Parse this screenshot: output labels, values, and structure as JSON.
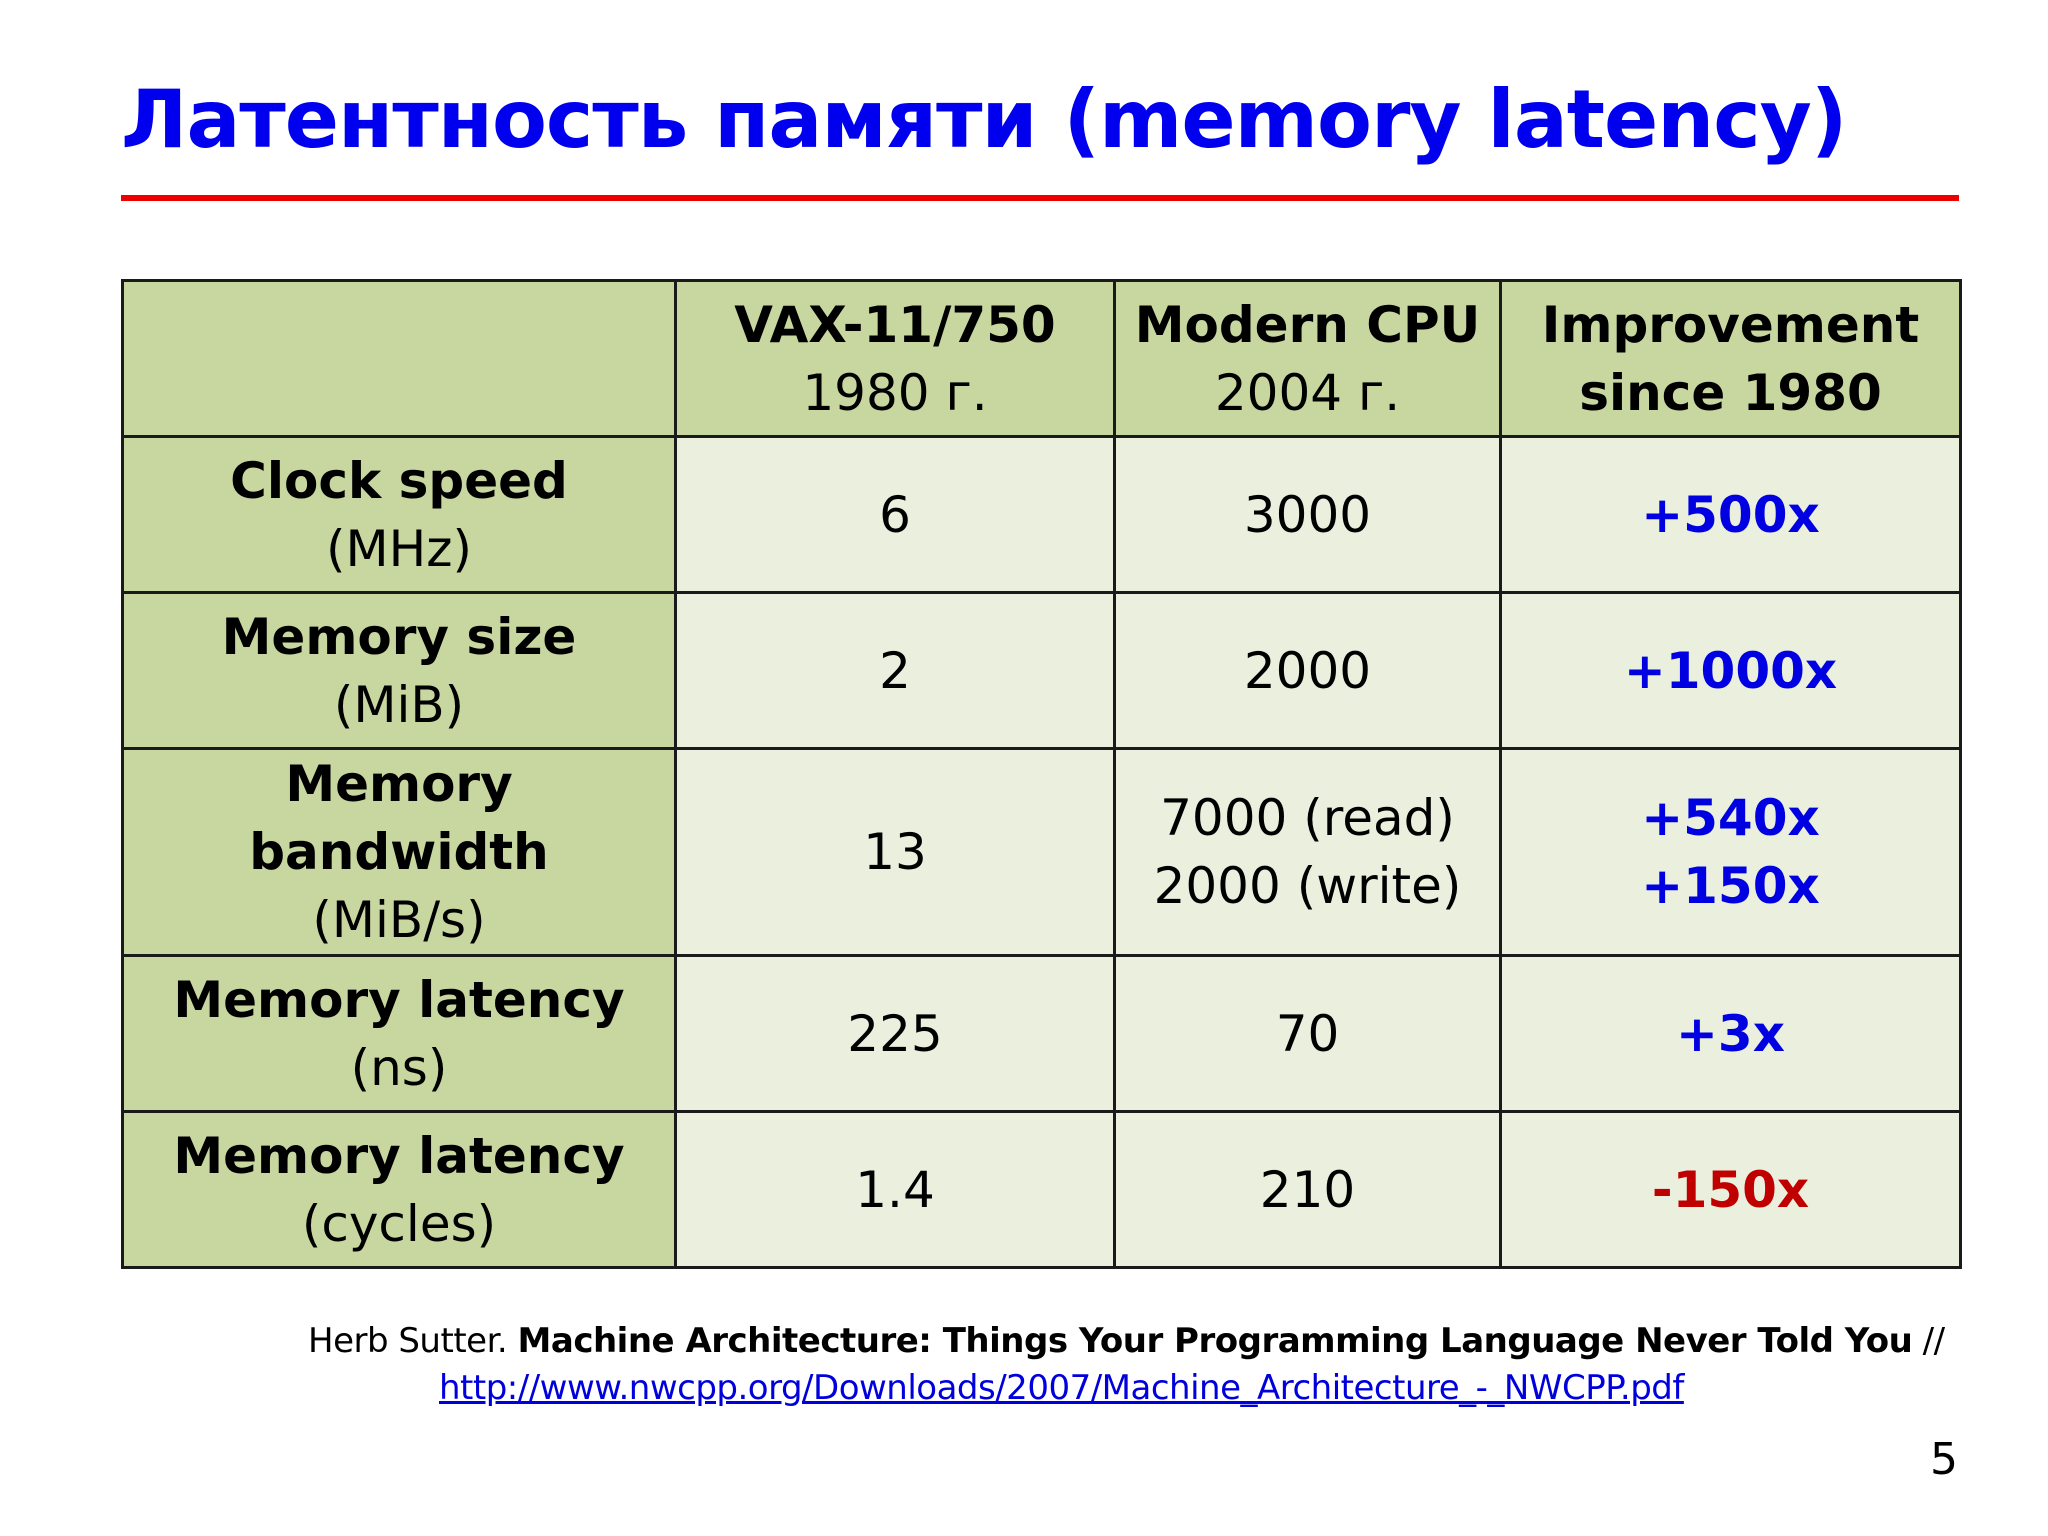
{
  "title": "Латентность памяти (memory latency)",
  "table": {
    "header": {
      "col1": {
        "line1": "VAX-11/750",
        "line2": "1980 г."
      },
      "col2": {
        "line1": "Modern CPU",
        "line2": "2004 г."
      },
      "col3": {
        "line1": "Improvement",
        "line2": "since 1980"
      }
    },
    "rows": [
      {
        "label": "Clock speed",
        "unit": "(MHz)",
        "vax": "6",
        "modern_1": "3000",
        "modern_2": "",
        "improvement_1": "+500x",
        "improvement_2": ""
      },
      {
        "label": "Memory size",
        "unit": "(MiB)",
        "vax": "2",
        "modern_1": "2000",
        "modern_2": "",
        "improvement_1": "+1000x",
        "improvement_2": ""
      },
      {
        "label": "Memory bandwidth",
        "unit": "(MiB/s)",
        "vax": "13",
        "modern_1": "7000 (read)",
        "modern_2": "2000 (write)",
        "improvement_1": "+540x",
        "improvement_2": "+150x"
      },
      {
        "label": "Memory latency",
        "unit": "(ns)",
        "vax": "225",
        "modern_1": "70",
        "modern_2": "",
        "improvement_1": "+3x",
        "improvement_2": ""
      },
      {
        "label": "Memory latency",
        "unit": "(cycles)",
        "vax": "1.4",
        "modern_1": "210",
        "modern_2": "",
        "improvement_1": "-150x",
        "improvement_2": ""
      }
    ]
  },
  "reference": {
    "author": "Herb Sutter.",
    "work": "Machine Architecture: Things Your Programming Language Never Told You",
    "separator": "//",
    "url": "http://www.nwcpp.org/Downloads/2007/Machine_Architecture_-_NWCPP.pdf"
  },
  "page_number": "5",
  "colors": {
    "title": "#0000ee",
    "rule": "#ee0000",
    "header_fill": "#c8d6a0",
    "cell_fill": "#eaefde",
    "positive": "#0000e0",
    "negative": "#c00000"
  }
}
